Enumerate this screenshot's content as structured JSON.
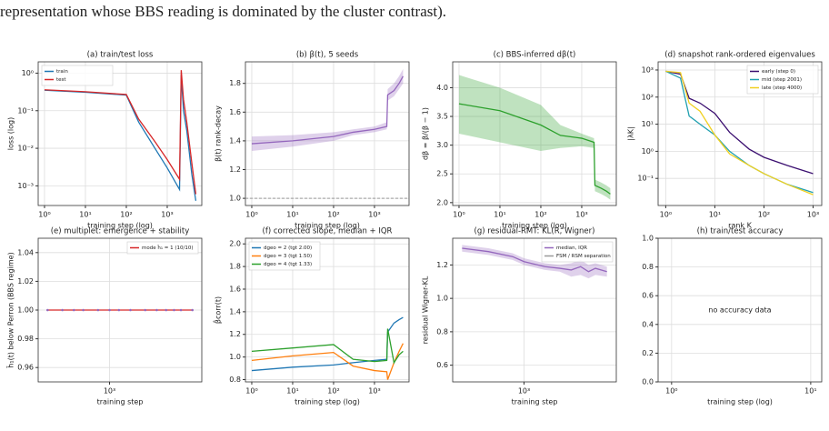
{
  "caption": "representation whose BBS reading is dominated by the cluster contrast).",
  "chart_data": [
    {
      "type": "line",
      "title": "(a) train/test loss",
      "xlabel": "training step (log)",
      "ylabel": "loss (log)",
      "xlog": true,
      "ylog": true,
      "grid": true,
      "legend": "upper left",
      "xlim": [
        0.7,
        7000
      ],
      "xticks": [
        {
          "value": 1,
          "label": "10⁰"
        },
        {
          "value": 10,
          "label": "10¹"
        },
        {
          "value": 100,
          "label": "10²"
        },
        {
          "value": 1000,
          "label": "10³"
        }
      ],
      "ylim": [
        0.0003,
        2
      ],
      "yticks": [
        {
          "value": 0.001,
          "label": "10⁻³"
        },
        {
          "value": 0.01,
          "label": "10⁻²"
        },
        {
          "value": 0.1,
          "label": "10⁻¹"
        },
        {
          "value": 1,
          "label": "10⁰"
        }
      ],
      "x": [
        1,
        10,
        100,
        200,
        500,
        1000,
        2000,
        2200,
        2500,
        3000,
        4000,
        5000
      ],
      "series": [
        {
          "name": "train",
          "color": "#1f77b4",
          "values": [
            0.35,
            0.31,
            0.26,
            0.05,
            0.01,
            0.003,
            0.0008,
            0.9,
            0.1,
            0.03,
            0.002,
            0.0004
          ]
        },
        {
          "name": "test",
          "color": "#d62728",
          "values": [
            0.36,
            0.32,
            0.27,
            0.06,
            0.015,
            0.005,
            0.0015,
            1.2,
            0.2,
            0.05,
            0.004,
            0.0006
          ]
        }
      ]
    },
    {
      "type": "line",
      "title": "(b) β(t), 5 seeds",
      "xlabel": "training step (log)",
      "ylabel": "β(t) rank-decay",
      "xlog": true,
      "grid": true,
      "hline": 1,
      "xlim": [
        0.7,
        7000
      ],
      "xticks": [
        {
          "value": 1,
          "label": "10⁰"
        },
        {
          "value": 10,
          "label": "10¹"
        },
        {
          "value": 100,
          "label": "10²"
        },
        {
          "value": 1000,
          "label": "10³"
        }
      ],
      "ylim": [
        0.95,
        1.95
      ],
      "yticks": [
        {
          "value": 1,
          "label": "1.0"
        },
        1.2,
        1.4,
        1.6,
        1.8
      ],
      "x": [
        1,
        10,
        100,
        300,
        1000,
        2000,
        2100,
        3000,
        4000,
        5000
      ],
      "series": [
        {
          "color": "#9467bd",
          "values": [
            1.38,
            1.4,
            1.43,
            1.46,
            1.48,
            1.5,
            1.72,
            1.75,
            1.8,
            1.85
          ],
          "lower": [
            1.33,
            1.36,
            1.4,
            1.44,
            1.46,
            1.48,
            1.68,
            1.71,
            1.76,
            1.8
          ],
          "upper": [
            1.43,
            1.44,
            1.46,
            1.48,
            1.5,
            1.53,
            1.76,
            1.8,
            1.85,
            1.9
          ]
        }
      ]
    },
    {
      "type": "line",
      "title": "(c) BBS-inferred dβ(t)",
      "xlabel": "training step (log)",
      "ylabel": "dβ = β/(β − 1)",
      "xlog": true,
      "grid": true,
      "xlim": [
        0.7,
        7000
      ],
      "xticks": [
        {
          "value": 1,
          "label": "10⁰"
        },
        {
          "value": 10,
          "label": "10¹"
        },
        {
          "value": 100,
          "label": "10²"
        },
        {
          "value": 1000,
          "label": "10³"
        }
      ],
      "ylim": [
        1.95,
        4.45
      ],
      "yticks": [
        {
          "value": 2,
          "label": "2.0"
        },
        2.5,
        {
          "value": 3,
          "label": "3.0"
        },
        3.5,
        {
          "value": 4,
          "label": "4.0"
        }
      ],
      "x": [
        1,
        10,
        100,
        300,
        1000,
        2000,
        2100,
        3000,
        4000,
        5000
      ],
      "series": [
        {
          "color": "#2ca02c",
          "values": [
            3.72,
            3.6,
            3.35,
            3.17,
            3.12,
            3.05,
            2.3,
            2.25,
            2.2,
            2.15
          ],
          "lower": [
            3.2,
            3.05,
            2.9,
            2.95,
            2.98,
            2.95,
            2.2,
            2.15,
            2.1,
            2.05
          ],
          "upper": [
            4.22,
            4.0,
            3.7,
            3.35,
            3.2,
            3.12,
            2.4,
            2.35,
            2.3,
            2.25
          ]
        }
      ]
    },
    {
      "type": "line",
      "title": "(d) snapshot rank-ordered eigenvalues",
      "xlabel": "rank K",
      "ylabel": "|λK|",
      "xlog": true,
      "ylog": true,
      "grid": true,
      "legend": "upper right",
      "xlim": [
        0.7,
        1500
      ],
      "xticks": [
        {
          "value": 1,
          "label": "10⁰"
        },
        {
          "value": 10,
          "label": "10¹"
        },
        {
          "value": 100,
          "label": "10²"
        },
        {
          "value": 1000,
          "label": "10³"
        }
      ],
      "ylim": [
        0.01,
        2000
      ],
      "yticks": [
        {
          "value": 0.1,
          "label": "10⁻¹"
        },
        {
          "value": 1,
          "label": "10⁰"
        },
        {
          "value": 10,
          "label": "10¹"
        },
        {
          "value": 100,
          "label": "10²"
        },
        {
          "value": 1000,
          "label": "10³"
        }
      ],
      "x": [
        1,
        2,
        3,
        5,
        10,
        20,
        50,
        100,
        300,
        1000
      ],
      "series": [
        {
          "name": "early (step 0)",
          "color": "#3b0f70",
          "values": [
            900,
            700,
            90,
            60,
            25,
            5,
            1.2,
            0.6,
            0.3,
            0.15
          ]
        },
        {
          "name": "mid (step 2001)",
          "color": "#21a0b0",
          "values": [
            900,
            500,
            20,
            10,
            4,
            1,
            0.3,
            0.15,
            0.06,
            0.03
          ]
        },
        {
          "name": "late (step 4000)",
          "color": "#f0d020",
          "values": [
            900,
            800,
            60,
            30,
            4,
            0.8,
            0.3,
            0.15,
            0.06,
            0.025
          ]
        }
      ]
    },
    {
      "type": "line",
      "title": "(e) multiplet: emergence + stability",
      "xlabel": "training step",
      "ylabel": "ĥ₁(t) below Perron (BBS regime)",
      "xlog": true,
      "grid": true,
      "legend": "upper right",
      "xlim": [
        250,
        6000
      ],
      "xticks": [
        {
          "value": 1000,
          "label": "10³"
        }
      ],
      "ylim": [
        0.95,
        1.05
      ],
      "yticks": [
        0.96,
        0.98,
        {
          "value": 1,
          "label": "1.00"
        },
        1.02,
        1.04
      ],
      "x": [
        300,
        400,
        500,
        600,
        800,
        1000,
        1200,
        1500,
        2000,
        2500,
        3000,
        3500,
        4000,
        5000
      ],
      "series": [
        {
          "name": "mode ĥ₁ = 1 (10/10)",
          "color": "#d62728",
          "marker_color": "#9467bd",
          "markers": true,
          "values": [
            1,
            1,
            1,
            1,
            1,
            1,
            1,
            1,
            1,
            1,
            1,
            1,
            1,
            1
          ]
        }
      ]
    },
    {
      "type": "line",
      "title": "(f) corrected slope, median + IQR",
      "xlabel": "training step (log)",
      "ylabel": "β̂corr(t)",
      "xlog": true,
      "grid": true,
      "legend": "upper left",
      "xlim": [
        0.7,
        7000
      ],
      "xticks": [
        {
          "value": 1,
          "label": "10⁰"
        },
        {
          "value": 10,
          "label": "10¹"
        },
        {
          "value": 100,
          "label": "10²"
        },
        {
          "value": 1000,
          "label": "10³"
        }
      ],
      "ylim": [
        0.78,
        2.05
      ],
      "yticks": [
        0.8,
        {
          "value": 1,
          "label": "1.0"
        },
        1.2,
        1.4,
        1.6,
        1.8,
        {
          "value": 2,
          "label": "2.0"
        }
      ],
      "x": [
        1,
        10,
        100,
        300,
        1000,
        2000,
        2100,
        3000,
        4000,
        5000
      ],
      "series": [
        {
          "name": "dgeo = 2 (tgt 2.00)",
          "color": "#1f77b4",
          "values": [
            0.88,
            0.91,
            0.93,
            0.95,
            0.97,
            0.98,
            1.22,
            1.3,
            1.33,
            1.35
          ]
        },
        {
          "name": "dgeo = 3 (tgt 1.50)",
          "color": "#ff7f0e",
          "values": [
            0.97,
            1.01,
            1.04,
            0.92,
            0.88,
            0.87,
            0.8,
            0.95,
            1.05,
            1.12
          ]
        },
        {
          "name": "dgeo = 4 (tgt 1.33)",
          "color": "#2ca02c",
          "values": [
            1.05,
            1.08,
            1.11,
            0.98,
            0.96,
            0.97,
            1.25,
            0.95,
            1.02,
            1.05
          ]
        }
      ]
    },
    {
      "type": "line",
      "title": "(g) residual-RMT: KL(R, Wigner)",
      "xlabel": "training step",
      "ylabel": "residual Wigner-KL",
      "xlog": true,
      "grid": true,
      "legend": "upper right",
      "legend_extra": [
        {
          "name": "FSM / RSM separation",
          "color": "#999999"
        }
      ],
      "xlim": [
        250,
        6000
      ],
      "xticks": [
        {
          "value": 1000,
          "label": "10³"
        }
      ],
      "ylim": [
        0.5,
        1.36
      ],
      "yticks": [
        0.6,
        0.8,
        {
          "value": 1,
          "label": "1.0"
        },
        1.2
      ],
      "x": [
        300,
        500,
        800,
        1000,
        1500,
        2000,
        2500,
        3000,
        3500,
        4000,
        5000
      ],
      "series": [
        {
          "name": "median, IQR",
          "color": "#9467bd",
          "values": [
            1.3,
            1.28,
            1.25,
            1.22,
            1.19,
            1.18,
            1.17,
            1.19,
            1.16,
            1.18,
            1.16
          ],
          "lower": [
            1.28,
            1.26,
            1.23,
            1.2,
            1.17,
            1.16,
            1.13,
            1.14,
            1.12,
            1.14,
            1.13
          ],
          "upper": [
            1.32,
            1.3,
            1.27,
            1.24,
            1.21,
            1.2,
            1.21,
            1.23,
            1.2,
            1.21,
            1.19
          ]
        }
      ]
    },
    {
      "type": "empty",
      "title": "(h) train/test accuracy",
      "xlabel": "training step (log)",
      "annotation": "no accuracy data",
      "xlog": true,
      "grid": true,
      "xlim": [
        0.8,
        12
      ],
      "xticks": [
        {
          "value": 1,
          "label": "10⁰"
        },
        {
          "value": 10,
          "label": "10¹"
        }
      ],
      "ylim": [
        0,
        1
      ],
      "yticks": [
        {
          "value": 0,
          "label": "0.0"
        },
        0.2,
        0.4,
        0.6,
        0.8,
        {
          "value": 1,
          "label": "1.0"
        }
      ]
    }
  ]
}
